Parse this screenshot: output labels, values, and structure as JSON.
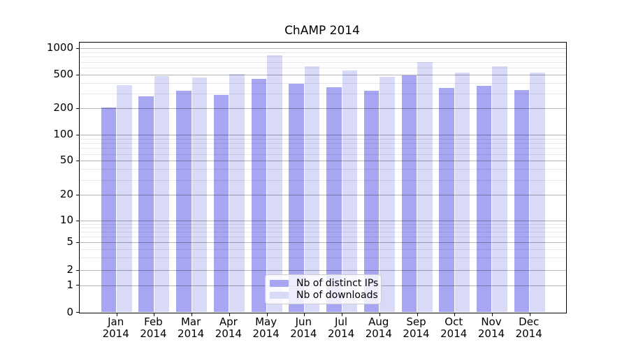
{
  "chart_data": {
    "type": "bar",
    "title": "ChAMP 2014",
    "categories": [
      "Jan",
      "Feb",
      "Mar",
      "Apr",
      "May",
      "Jun",
      "Jul",
      "Aug",
      "Sep",
      "Oct",
      "Nov",
      "Dec"
    ],
    "x_year_label": "2014",
    "series": [
      {
        "name": "Nb of distinct IPs",
        "color": "#a6a6f2",
        "values": [
          205,
          275,
          320,
          285,
          445,
          390,
          355,
          320,
          490,
          350,
          365,
          330
        ]
      },
      {
        "name": "Nb of downloads",
        "color": "#d9d9f8",
        "values": [
          375,
          480,
          465,
          510,
          830,
          620,
          560,
          475,
          690,
          525,
          625,
          525
        ]
      }
    ],
    "y_axis": {
      "scale": "log",
      "tick_labels": [
        "1000",
        "500",
        "200",
        "100",
        "50",
        "20",
        "10",
        "5",
        "2",
        "1",
        "0"
      ]
    },
    "xlabel": "",
    "ylabel": "",
    "grid": "on",
    "legend_position": "lower center"
  }
}
